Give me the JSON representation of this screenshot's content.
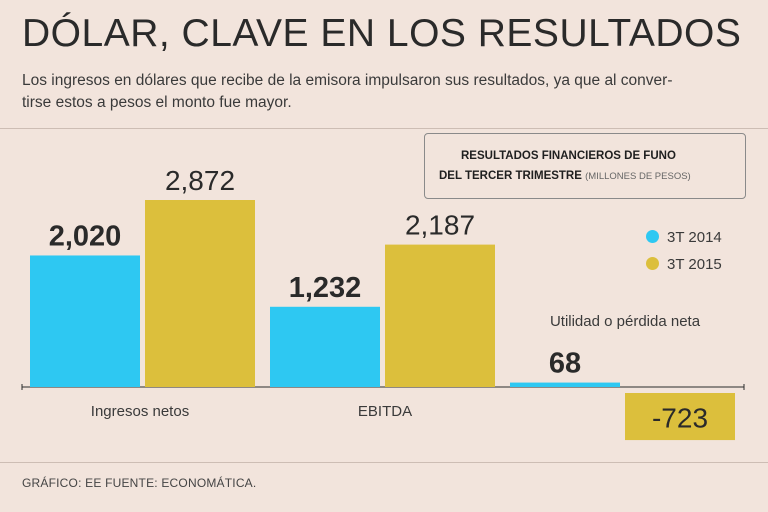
{
  "header": {
    "title": "DÓLAR, CLAVE EN LOS RESULTADOS",
    "subtitle_line1": "Los ingresos en dólares que recibe de la emisora impulsaron sus resultados, ya que al conver-",
    "subtitle_line2": "tirse estos a pesos el monto fue mayor."
  },
  "box": {
    "line1": "RESULTADOS FINANCIEROS DE FUNO",
    "line2": "DEL TERCER TRIMESTRE",
    "unit": "(MILLONES DE PESOS)"
  },
  "colors": {
    "series_2014": "#2ec8f2",
    "series_2015": "#dcbf3c",
    "background": "#f2e4dc"
  },
  "footer": {
    "text": "GRÁFICO: EE  FUENTE: ECONOMÁTICA."
  },
  "chart_data": {
    "type": "bar",
    "title": "Resultados financieros de FUNO del tercer trimestre (millones de pesos)",
    "categories": [
      "Ingresos netos",
      "EBITDA",
      "Utilidad o pérdida neta"
    ],
    "series": [
      {
        "name": "3T 2014",
        "values": [
          2020,
          1232,
          68
        ],
        "labels": [
          "2,020",
          "1,232",
          "68"
        ]
      },
      {
        "name": "3T 2015",
        "values": [
          2872,
          2187,
          -723
        ],
        "labels": [
          "2,872",
          "2,187",
          "-723"
        ]
      }
    ],
    "ylim": [
      -800,
      2900
    ]
  }
}
